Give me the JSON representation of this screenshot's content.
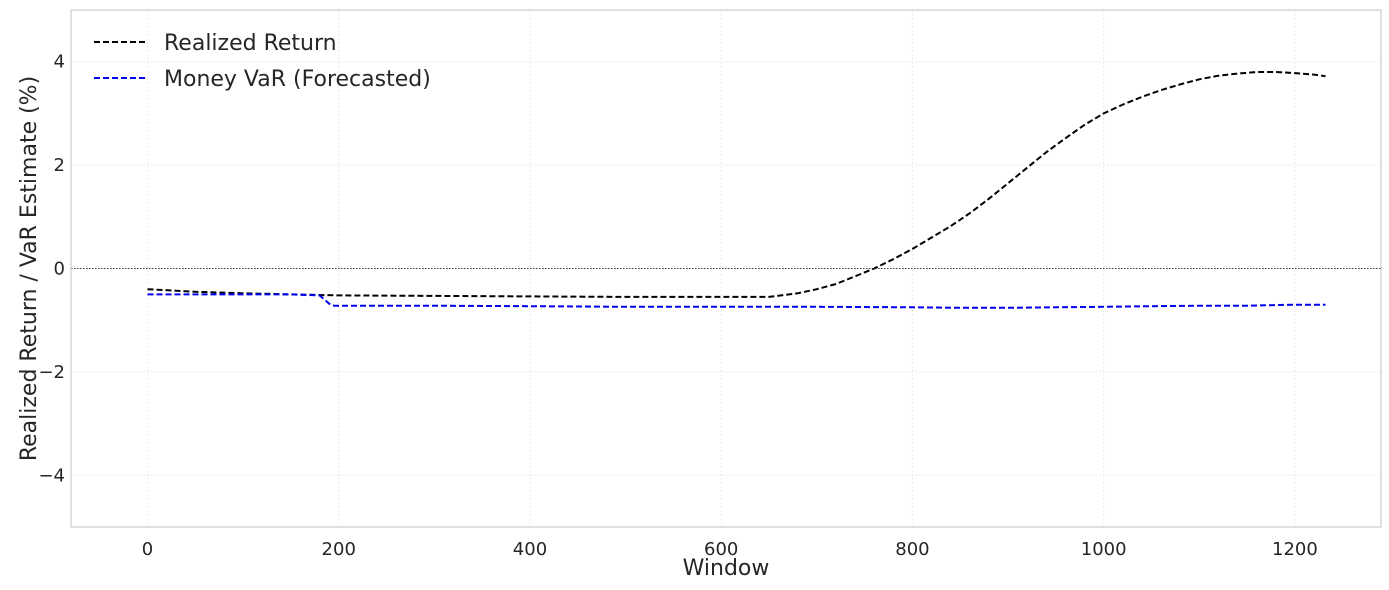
{
  "chart_data": {
    "type": "line",
    "xlabel": "Window",
    "ylabel": "Realized Return / VaR Estimate (%)",
    "xlim": [
      -80,
      1290
    ],
    "ylim": [
      -5,
      5
    ],
    "xticks": [
      0,
      200,
      400,
      600,
      800,
      1000,
      1200
    ],
    "xtick_labels": [
      "0",
      "200",
      "400",
      "600",
      "800",
      "1000",
      "1200"
    ],
    "yticks": [
      -4,
      -2,
      0,
      2,
      4
    ],
    "ytick_labels": [
      "−4",
      "−2",
      "0",
      "2",
      "4"
    ],
    "grid": true,
    "zero_line": true,
    "legend_position": "top-left",
    "series": [
      {
        "name": "Realized Return",
        "color": "#000000",
        "style": "dashed",
        "x": [
          0,
          50,
          100,
          150,
          200,
          300,
          400,
          500,
          600,
          650,
          680,
          700,
          720,
          740,
          760,
          780,
          800,
          820,
          840,
          860,
          880,
          900,
          920,
          940,
          960,
          980,
          1000,
          1020,
          1040,
          1060,
          1080,
          1100,
          1120,
          1140,
          1160,
          1180,
          1200,
          1220,
          1232
        ],
        "y": [
          -0.4,
          -0.45,
          -0.48,
          -0.5,
          -0.52,
          -0.53,
          -0.54,
          -0.55,
          -0.55,
          -0.55,
          -0.48,
          -0.4,
          -0.3,
          -0.15,
          0.0,
          0.18,
          0.38,
          0.6,
          0.82,
          1.07,
          1.35,
          1.65,
          1.95,
          2.25,
          2.52,
          2.78,
          3.0,
          3.17,
          3.32,
          3.45,
          3.56,
          3.66,
          3.73,
          3.77,
          3.8,
          3.8,
          3.78,
          3.75,
          3.72
        ]
      },
      {
        "name": "Money VaR (Forecasted)",
        "color": "#0000ee",
        "style": "dashed",
        "x": [
          0,
          50,
          100,
          150,
          180,
          185,
          190,
          195,
          300,
          400,
          500,
          600,
          700,
          800,
          850,
          900,
          950,
          1000,
          1050,
          1100,
          1150,
          1200,
          1232
        ],
        "y": [
          -0.5,
          -0.5,
          -0.5,
          -0.5,
          -0.52,
          -0.6,
          -0.68,
          -0.72,
          -0.72,
          -0.73,
          -0.74,
          -0.74,
          -0.74,
          -0.75,
          -0.76,
          -0.76,
          -0.75,
          -0.74,
          -0.73,
          -0.72,
          -0.72,
          -0.7,
          -0.7
        ]
      }
    ]
  }
}
